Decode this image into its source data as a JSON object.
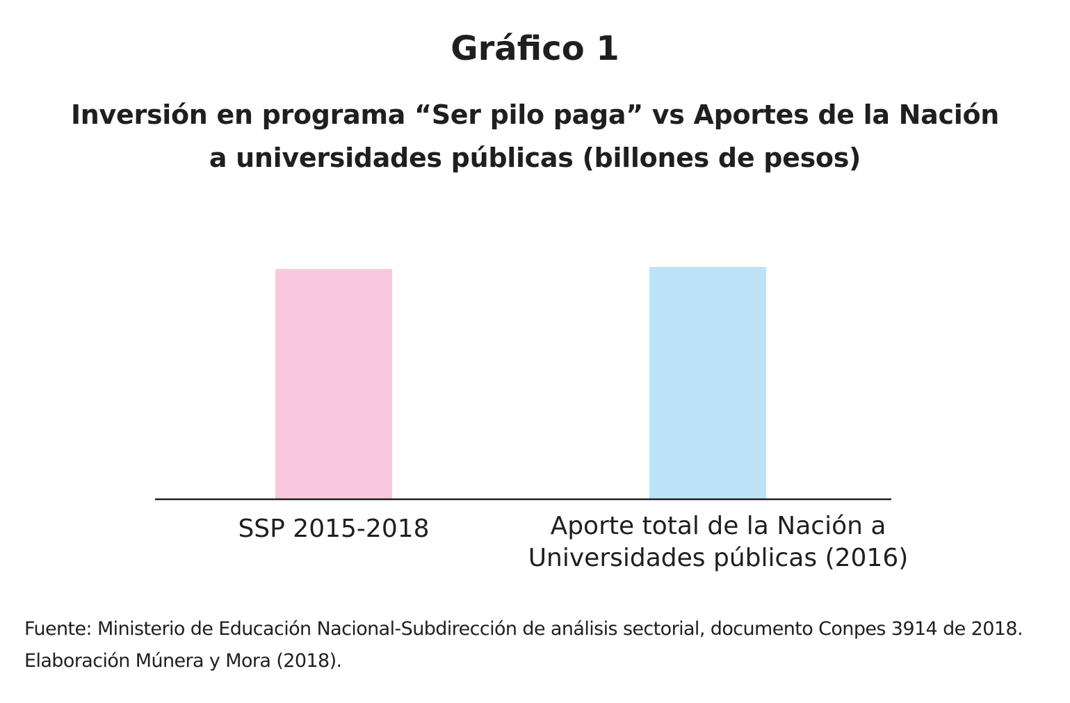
{
  "figure_label": "Gráfico 1",
  "chart_data": {
    "type": "bar",
    "title": "Inversión en programa “Ser pilo paga” vs Aportes de la Nación a universidades públicas (billones de pesos)",
    "title_lines": [
      "Inversión en programa “Ser pilo paga” vs Aportes de la Nación",
      "a universidades públicas (billones de pesos)"
    ],
    "categories": [
      "SSP 2015-2018",
      "Aporte total de la Nación a Universidades públicas (2016)"
    ],
    "category_lines": [
      [
        "SSP 2015-2018"
      ],
      [
        "Aporte total de la Nación a",
        "Universidades públicas (2016)"
      ]
    ],
    "values": [
      3.3,
      3.33
    ],
    "colors": [
      "#f8c8df",
      "#bde3f8"
    ],
    "xlabel": "",
    "ylabel": "",
    "ylim": [
      0,
      5
    ],
    "grid": false,
    "legend": "none"
  },
  "source": {
    "line1": "Fuente: Ministerio de Educación Nacional-Subdirección de análisis sectorial, documento Conpes 3914 de 2018.",
    "line2": "Elaboración Múnera y Mora (2018)."
  }
}
